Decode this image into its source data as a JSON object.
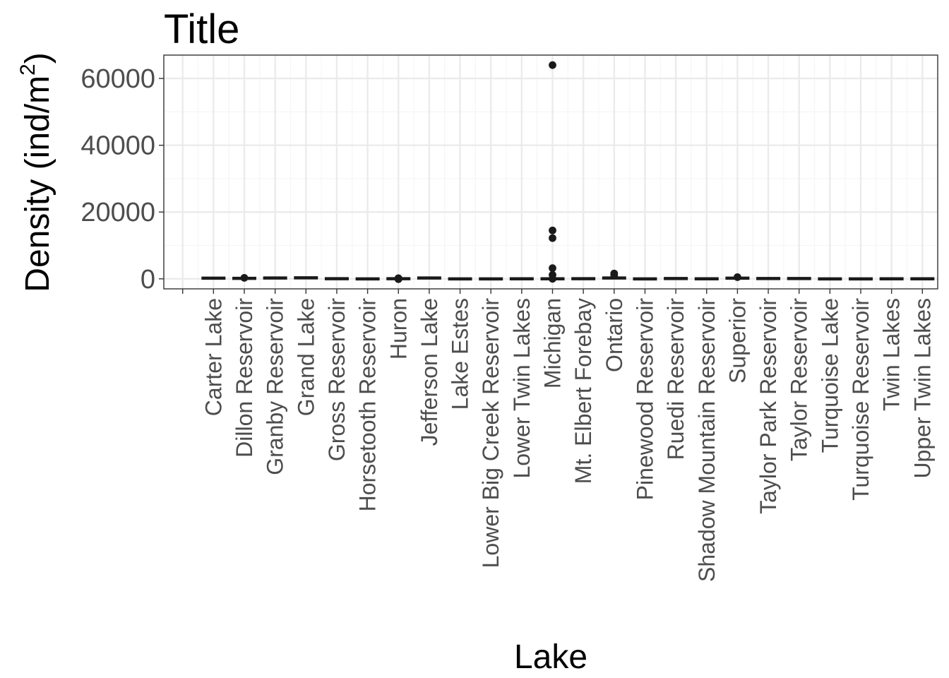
{
  "chart_data": {
    "type": "box",
    "title": "Title",
    "xlabel": "Lake",
    "ylabel": {
      "text": "Density  (ind",
      "slash": "/",
      "unit": "m",
      "superscript": "2",
      "close": ")"
    },
    "ylim": [
      -3000,
      67000
    ],
    "yticks": [
      0,
      20000,
      40000,
      60000
    ],
    "grid": true,
    "categories": [
      "",
      "Carter Lake",
      "Dillon Reservoir",
      "Granby Reservoir",
      "Grand Lake",
      "Gross Reservoir",
      "Horsetooth Reservoir",
      "Huron",
      "Jefferson Lake",
      "Lake Estes",
      "Lower Big Creek Reservoir",
      "Lower Twin Lakes",
      "Michigan",
      "Mt. Elbert Forebay",
      "Ontario",
      "Pinewood Reservoir",
      "Ruedi Reservoir",
      "Shadow Mountain Reservoir",
      "Superior",
      "Taylor Park Reservoir",
      "Taylor Reservoir",
      "Turquoise Lake",
      "Turquoise Reservoir",
      "Twin Lakes",
      "Upper Twin Lakes"
    ],
    "medians": [
      null,
      200,
      150,
      250,
      300,
      50,
      0,
      40,
      250,
      0,
      0,
      20,
      10,
      50,
      250,
      0,
      100,
      10,
      200,
      100,
      100,
      0,
      0,
      10,
      10
    ],
    "points": [
      {
        "category": "Dillon Reservoir",
        "value": 300
      },
      {
        "category": "Huron",
        "value": 200
      },
      {
        "category": "Huron",
        "value": -100
      },
      {
        "category": "Michigan",
        "value": 64000
      },
      {
        "category": "Michigan",
        "value": 14500
      },
      {
        "category": "Michigan",
        "value": 12200
      },
      {
        "category": "Michigan",
        "value": 3200
      },
      {
        "category": "Michigan",
        "value": 1200
      },
      {
        "category": "Michigan",
        "value": 0
      },
      {
        "category": "Ontario",
        "value": 1600
      },
      {
        "category": "Ontario",
        "value": 1100
      },
      {
        "category": "Superior",
        "value": 500
      }
    ],
    "colors": {
      "panel_border": "#333333",
      "grid_major": "#ebebeb",
      "grid_minor": "#f5f5f5",
      "marks": "#1a1a1a",
      "tick_text": "#4d4d4d"
    }
  }
}
